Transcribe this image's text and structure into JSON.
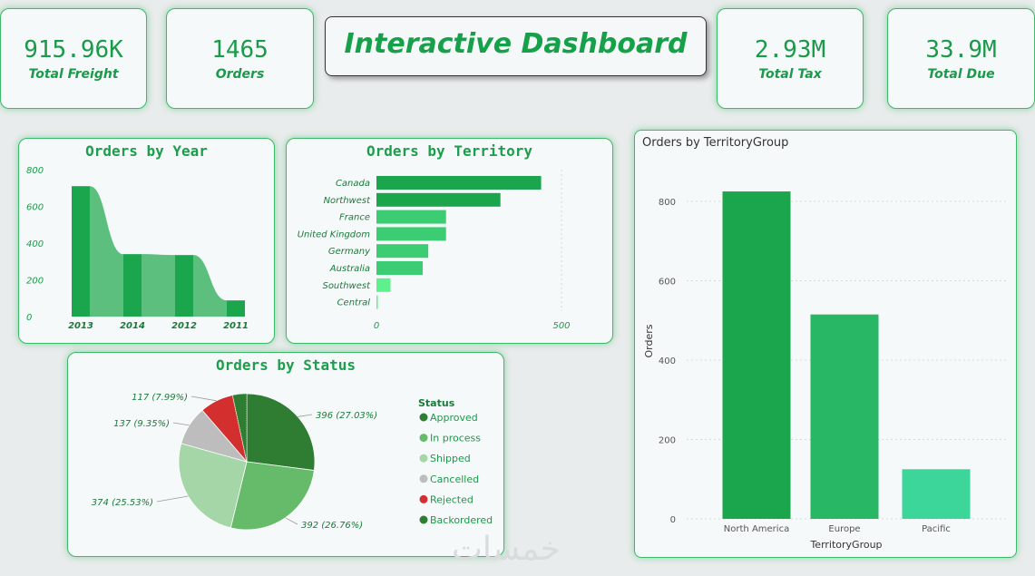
{
  "dashboard_title": "Interactive Dashboard",
  "kpis": [
    {
      "value": "915.96K",
      "label": "Total Freight"
    },
    {
      "value": "1465",
      "label": "Orders"
    },
    {
      "value": "2.93M",
      "label": "Total Tax"
    },
    {
      "value": "33.9M",
      "label": "Total Due"
    }
  ],
  "watermark": "خمسات",
  "colors": {
    "accent": "#1a9a4a",
    "bar_dark": "#1ba64e",
    "bar_mid": "#28b865",
    "bar_light": "#3cd59a",
    "rejected": "#d32f2f",
    "cancelled": "#bdbdbd"
  },
  "chart_data": [
    {
      "id": "year",
      "type": "bar",
      "title": "Orders by Year",
      "categories": [
        "2013",
        "2014",
        "2012",
        "2011"
      ],
      "values": [
        710,
        340,
        335,
        88
      ],
      "ylim": [
        0,
        800
      ],
      "yticks": [
        "0",
        "200",
        "400",
        "600",
        "800"
      ]
    },
    {
      "id": "territory",
      "type": "bar",
      "orientation": "horizontal",
      "title": "Orders by Territory",
      "categories": [
        "Canada",
        "Northwest",
        "France",
        "United Kingdom",
        "Germany",
        "Australia",
        "Southwest",
        "Central"
      ],
      "values": [
        445,
        335,
        188,
        188,
        140,
        125,
        38,
        2
      ],
      "xlim": [
        0,
        500
      ],
      "xticks": [
        "0",
        "500"
      ]
    },
    {
      "id": "status",
      "type": "pie",
      "title": "Orders by Status",
      "legend_title": "Status",
      "slices": [
        {
          "name": "Approved",
          "value": 396,
          "label": "396 (27.03%)",
          "color": "#2e7d32"
        },
        {
          "name": "In process",
          "value": 392,
          "label": "392 (26.76%)",
          "color": "#66bb6a"
        },
        {
          "name": "Shipped",
          "value": 374,
          "label": "374 (25.53%)",
          "color": "#a5d6a7"
        },
        {
          "name": "Cancelled",
          "value": 137,
          "label": "137 (9.35%)",
          "color": "#bdbdbd"
        },
        {
          "name": "Rejected",
          "value": 117,
          "label": "117 (7.99%)",
          "color": "#d32f2f"
        },
        {
          "name": "Backordered",
          "value": 49,
          "label": "",
          "color": "#2e7d32"
        }
      ]
    },
    {
      "id": "group",
      "type": "bar",
      "title": "Orders by TerritoryGroup",
      "xlabel": "TerritoryGroup",
      "ylabel": "Orders",
      "categories": [
        "North America",
        "Europe",
        "Pacific"
      ],
      "values": [
        825,
        515,
        125
      ],
      "colors": [
        "#1ba64e",
        "#28b865",
        "#3cd59a"
      ],
      "ylim": [
        0,
        800
      ],
      "yticks": [
        "0",
        "200",
        "400",
        "600",
        "800"
      ]
    }
  ]
}
